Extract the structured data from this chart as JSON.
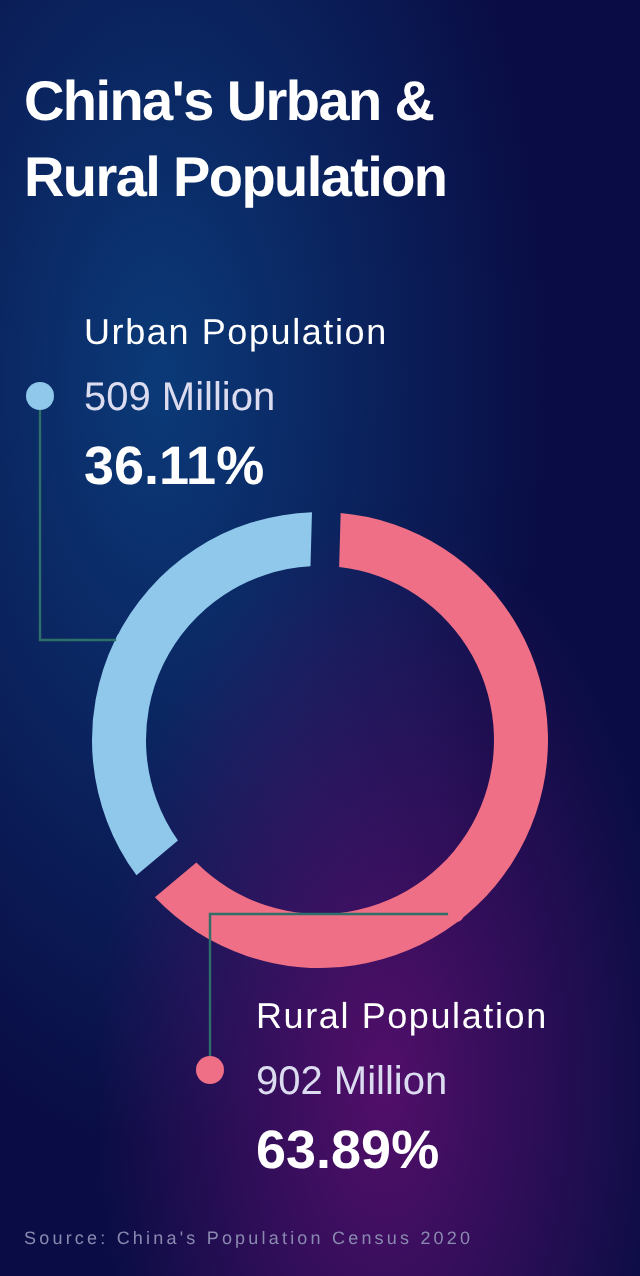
{
  "chart_data": {
    "type": "donut",
    "title": "China's Urban & Rural Population",
    "categories": [
      "Urban Population",
      "Rural Population"
    ],
    "values": [
      36.11,
      63.89
    ],
    "colors": [
      "#8fc8ea",
      "#ee6f86"
    ],
    "value_labels": [
      "36.11%",
      "63.89%"
    ],
    "annotations": [
      "509 Million",
      "902 Million",
      "Source: China's Population Census 2020"
    ]
  }
}
